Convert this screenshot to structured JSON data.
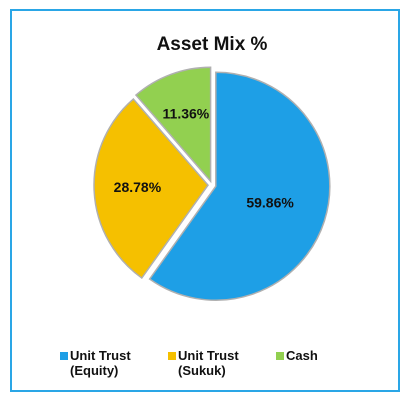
{
  "chart_data": {
    "type": "pie",
    "title": "Asset Mix %",
    "categories": [
      "Unit Trust (Equity)",
      "Unit Trust (Sukuk)",
      "Cash"
    ],
    "values": [
      59.86,
      28.78,
      11.36
    ],
    "value_labels": [
      "59.86%",
      "28.78%",
      "11.36%"
    ],
    "colors": [
      "#1e9fe6",
      "#f5c000",
      "#92d050"
    ],
    "legend": "bottom"
  }
}
